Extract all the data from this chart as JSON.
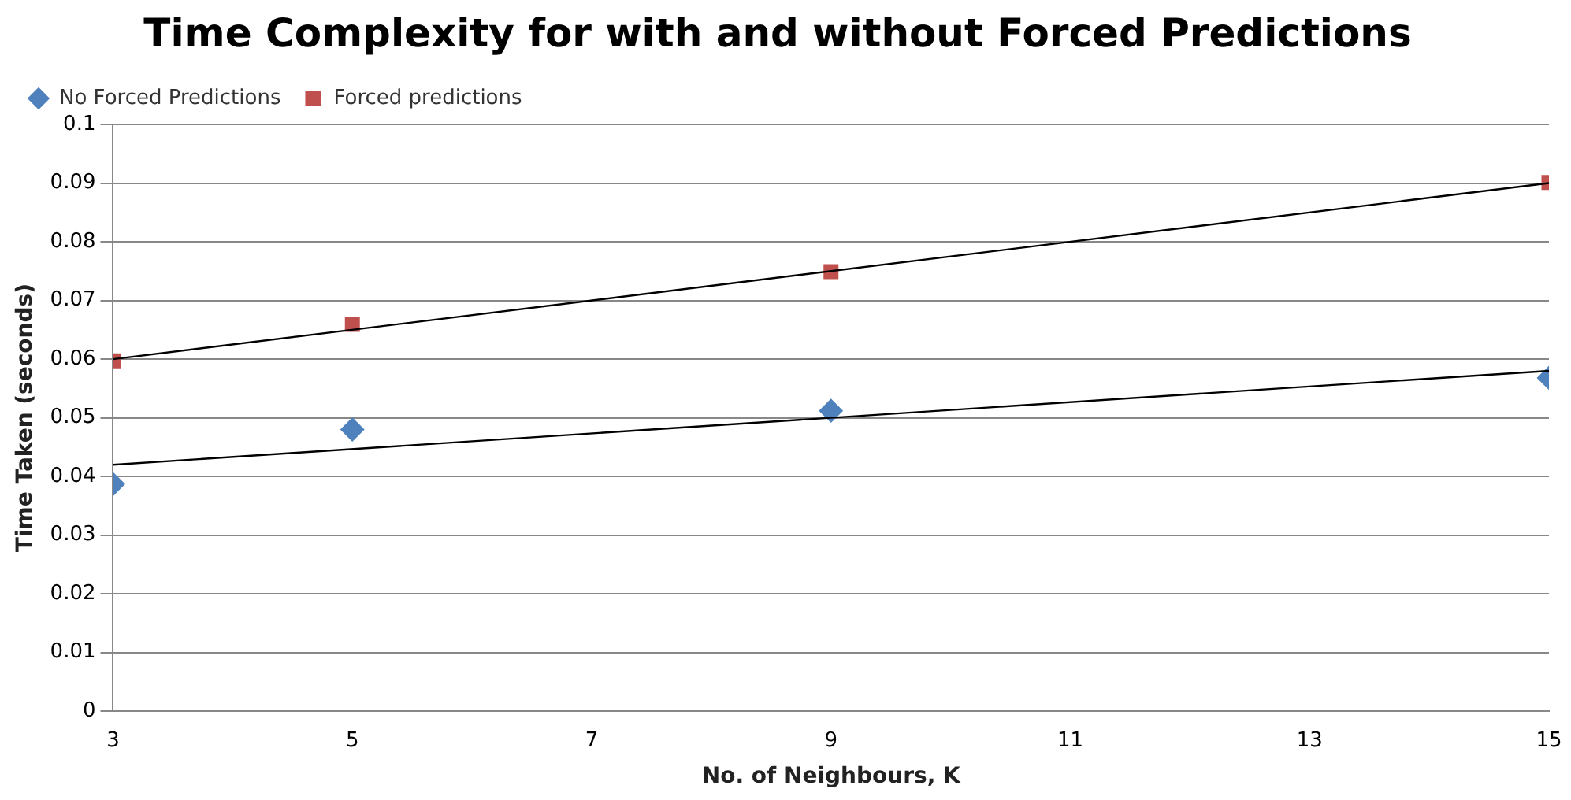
{
  "chart_data": {
    "type": "scatter",
    "title": "Time Complexity for with and without Forced Predictions",
    "xlabel": "No. of Neighbours, K",
    "ylabel": "Time Taken (seconds)",
    "x": [
      3,
      5,
      9,
      15
    ],
    "series": [
      {
        "name": "No Forced Predictions",
        "color": "#4f81bd",
        "marker": "diamond",
        "values": [
          0.0387,
          0.048,
          0.0512,
          0.0568
        ]
      },
      {
        "name": "Forced predictions",
        "color": "#c0504d",
        "marker": "square",
        "values": [
          0.0597,
          0.0659,
          0.0749,
          0.0901
        ]
      },
      {
        "type": "line",
        "color": "#000000",
        "marker": "none",
        "values": [
          0.042,
          null,
          null,
          0.058
        ]
      },
      {
        "type": "line",
        "color": "#000000",
        "marker": "none",
        "values": [
          0.06,
          null,
          null,
          0.09
        ]
      }
    ],
    "xlim": [
      3,
      15
    ],
    "xticks": [
      3,
      5,
      7,
      9,
      11,
      13,
      15
    ],
    "ylim": [
      0,
      0.1
    ],
    "yticks": [
      0,
      0.01,
      0.02,
      0.03,
      0.04,
      0.05,
      0.06,
      0.07,
      0.08,
      0.09,
      0.1
    ],
    "grid": "y",
    "legend": "top left"
  }
}
